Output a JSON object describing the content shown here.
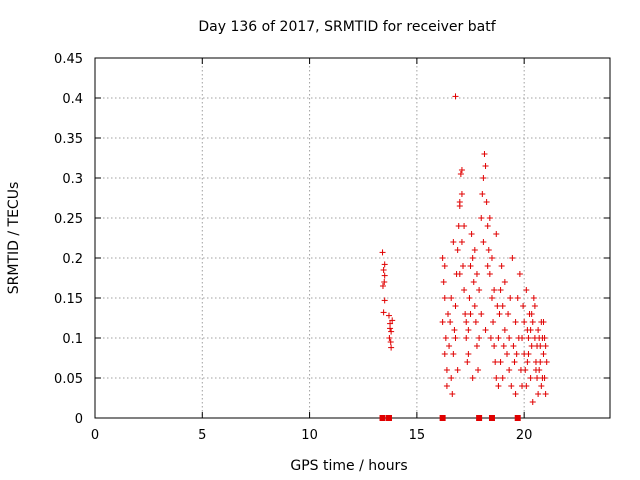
{
  "chart_data": {
    "type": "scatter",
    "title": "Day 136 of 2017, SRMTID for receiver batf",
    "xlabel": "GPS time / hours",
    "ylabel": "SRMTID / TECUs",
    "xlim": [
      0,
      24
    ],
    "ylim": [
      0,
      0.45
    ],
    "xticks": [
      0,
      5,
      10,
      15,
      20
    ],
    "yticks": [
      0,
      0.05,
      0.1,
      0.15,
      0.2,
      0.25,
      0.3,
      0.35,
      0.4,
      0.45
    ],
    "xtick_labels": [
      "0",
      "5",
      "10",
      "15",
      "20"
    ],
    "ytick_labels": [
      "0",
      "0.05",
      "0.1",
      "0.15",
      "0.2",
      "0.25",
      "0.3",
      "0.35",
      "0.4",
      "0.45"
    ],
    "grid": true,
    "marker": "+",
    "color": "#e00000",
    "zero_markers": {
      "marker": "square",
      "x": [
        13.4,
        13.7,
        16.2,
        17.9,
        18.5,
        19.7
      ]
    },
    "series": [
      {
        "name": "SRMTID",
        "points": [
          [
            13.4,
            0.207
          ],
          [
            13.45,
            0.185
          ],
          [
            13.5,
            0.178
          ],
          [
            13.5,
            0.192
          ],
          [
            13.42,
            0.165
          ],
          [
            13.48,
            0.17
          ],
          [
            13.45,
            0.132
          ],
          [
            13.5,
            0.147
          ],
          [
            13.7,
            0.128
          ],
          [
            13.75,
            0.118
          ],
          [
            13.8,
            0.108
          ],
          [
            13.72,
            0.1
          ],
          [
            13.78,
            0.095
          ],
          [
            13.8,
            0.088
          ],
          [
            13.85,
            0.122
          ],
          [
            13.75,
            0.112
          ],
          [
            16.2,
            0.2
          ],
          [
            16.25,
            0.17
          ],
          [
            16.3,
            0.15
          ],
          [
            16.2,
            0.12
          ],
          [
            16.35,
            0.1
          ],
          [
            16.3,
            0.08
          ],
          [
            16.4,
            0.06
          ],
          [
            16.5,
            0.09
          ],
          [
            16.45,
            0.13
          ],
          [
            16.6,
            0.15
          ],
          [
            16.6,
            0.05
          ],
          [
            16.65,
            0.03
          ],
          [
            16.7,
            0.08
          ],
          [
            16.75,
            0.11
          ],
          [
            16.8,
            0.14
          ],
          [
            16.85,
            0.18
          ],
          [
            16.9,
            0.21
          ],
          [
            16.8,
            0.402
          ],
          [
            16.95,
            0.24
          ],
          [
            17.0,
            0.27
          ],
          [
            17.05,
            0.305
          ],
          [
            17.1,
            0.31
          ],
          [
            17.0,
            0.265
          ],
          [
            17.1,
            0.22
          ],
          [
            17.15,
            0.19
          ],
          [
            17.2,
            0.16
          ],
          [
            17.25,
            0.13
          ],
          [
            17.3,
            0.1
          ],
          [
            17.35,
            0.07
          ],
          [
            17.4,
            0.11
          ],
          [
            17.45,
            0.15
          ],
          [
            17.5,
            0.19
          ],
          [
            17.55,
            0.23
          ],
          [
            17.6,
            0.2
          ],
          [
            17.65,
            0.17
          ],
          [
            17.7,
            0.14
          ],
          [
            17.75,
            0.12
          ],
          [
            17.8,
            0.09
          ],
          [
            17.85,
            0.06
          ],
          [
            17.9,
            0.1
          ],
          [
            18.0,
            0.25
          ],
          [
            18.05,
            0.28
          ],
          [
            18.1,
            0.3
          ],
          [
            18.15,
            0.33
          ],
          [
            18.2,
            0.315
          ],
          [
            18.25,
            0.27
          ],
          [
            18.3,
            0.24
          ],
          [
            18.35,
            0.21
          ],
          [
            18.4,
            0.18
          ],
          [
            18.5,
            0.15
          ],
          [
            18.55,
            0.12
          ],
          [
            18.6,
            0.09
          ],
          [
            18.65,
            0.07
          ],
          [
            18.7,
            0.05
          ],
          [
            18.8,
            0.1
          ],
          [
            18.85,
            0.13
          ],
          [
            18.9,
            0.16
          ],
          [
            18.95,
            0.19
          ],
          [
            19.0,
            0.14
          ],
          [
            19.1,
            0.11
          ],
          [
            19.2,
            0.08
          ],
          [
            19.3,
            0.06
          ],
          [
            19.4,
            0.04
          ],
          [
            19.5,
            0.09
          ],
          [
            19.6,
            0.12
          ],
          [
            19.7,
            0.15
          ],
          [
            19.8,
            0.18
          ],
          [
            19.9,
            0.1
          ],
          [
            20.0,
            0.08
          ],
          [
            20.05,
            0.06
          ],
          [
            20.1,
            0.04
          ],
          [
            20.15,
            0.07
          ],
          [
            20.2,
            0.1
          ],
          [
            20.25,
            0.13
          ],
          [
            20.3,
            0.11
          ],
          [
            20.35,
            0.09
          ],
          [
            20.4,
            0.12
          ],
          [
            20.45,
            0.15
          ],
          [
            20.5,
            0.1
          ],
          [
            20.55,
            0.07
          ],
          [
            20.6,
            0.05
          ],
          [
            20.65,
            0.03
          ],
          [
            20.7,
            0.06
          ],
          [
            20.75,
            0.09
          ],
          [
            20.8,
            0.12
          ],
          [
            20.85,
            0.1
          ],
          [
            20.9,
            0.08
          ],
          [
            20.95,
            0.05
          ],
          [
            21.0,
            0.03
          ],
          [
            21.05,
            0.07
          ],
          [
            16.55,
            0.12
          ],
          [
            16.9,
            0.06
          ],
          [
            17.2,
            0.24
          ],
          [
            17.4,
            0.08
          ],
          [
            17.6,
            0.05
          ],
          [
            17.9,
            0.16
          ],
          [
            18.1,
            0.22
          ],
          [
            18.3,
            0.19
          ],
          [
            18.45,
            0.1
          ],
          [
            18.7,
            0.23
          ],
          [
            18.9,
            0.07
          ],
          [
            19.1,
            0.17
          ],
          [
            19.25,
            0.13
          ],
          [
            19.45,
            0.2
          ],
          [
            19.55,
            0.07
          ],
          [
            19.75,
            0.1
          ],
          [
            19.95,
            0.14
          ],
          [
            20.1,
            0.16
          ],
          [
            20.3,
            0.05
          ],
          [
            20.5,
            0.14
          ],
          [
            20.65,
            0.11
          ],
          [
            20.8,
            0.04
          ],
          [
            20.95,
            0.1
          ],
          [
            16.3,
            0.19
          ],
          [
            16.7,
            0.22
          ],
          [
            17.0,
            0.18
          ],
          [
            17.3,
            0.12
          ],
          [
            17.7,
            0.21
          ],
          [
            18.0,
            0.13
          ],
          [
            18.4,
            0.25
          ],
          [
            18.6,
            0.16
          ],
          [
            18.8,
            0.04
          ],
          [
            19.0,
            0.05
          ],
          [
            19.3,
            0.1
          ],
          [
            19.6,
            0.03
          ],
          [
            19.85,
            0.06
          ],
          [
            20.0,
            0.12
          ],
          [
            20.2,
            0.08
          ],
          [
            20.4,
            0.02
          ],
          [
            20.6,
            0.09
          ],
          [
            20.75,
            0.07
          ],
          [
            20.9,
            0.12
          ],
          [
            21.0,
            0.09
          ],
          [
            16.4,
            0.04
          ],
          [
            16.8,
            0.1
          ],
          [
            17.1,
            0.28
          ],
          [
            17.5,
            0.13
          ],
          [
            17.8,
            0.18
          ],
          [
            18.2,
            0.11
          ],
          [
            18.5,
            0.2
          ],
          [
            18.75,
            0.14
          ],
          [
            19.05,
            0.09
          ],
          [
            19.35,
            0.15
          ],
          [
            19.65,
            0.08
          ],
          [
            19.9,
            0.04
          ],
          [
            20.15,
            0.11
          ],
          [
            20.35,
            0.13
          ],
          [
            20.55,
            0.06
          ],
          [
            20.7,
            0.1
          ],
          [
            20.85,
            0.05
          ]
        ]
      }
    ]
  }
}
